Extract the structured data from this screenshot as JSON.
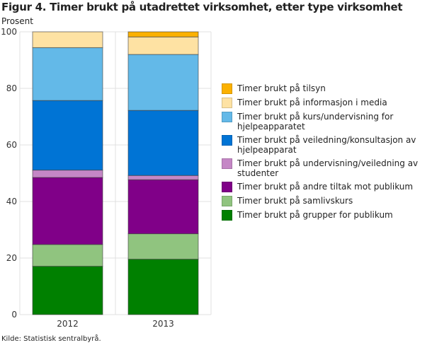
{
  "chart_data": {
    "type": "bar",
    "stacked": true,
    "title": "Figur 4. Timer brukt på utadrettet virksomhet, etter type virksomhet",
    "ylabel": "Prosent",
    "xlabel": "",
    "ylim": [
      0,
      100
    ],
    "yticks": [
      0,
      20,
      40,
      60,
      80,
      100
    ],
    "categories": [
      "2012",
      "2013"
    ],
    "grid": true,
    "legend_position": "right",
    "series": [
      {
        "name": "Timer brukt på grupper for publikum",
        "color": "#008000",
        "values": [
          17.1,
          19.6
        ]
      },
      {
        "name": "Timer brukt på samlivskurs",
        "color": "#90c47f",
        "values": [
          7.7,
          9.0
        ]
      },
      {
        "name": "Timer brukt på andre tiltak mot publikum",
        "color": "#800088",
        "values": [
          23.7,
          19.1
        ]
      },
      {
        "name": "Timer brukt på undervisning/veiledning av studenter",
        "color": "#c587c6",
        "values": [
          2.6,
          1.5
        ]
      },
      {
        "name": "Timer brukt på veiledning/konsultasjon av hjelpeapparat",
        "color": "#0074d5",
        "values": [
          24.6,
          23.0
        ]
      },
      {
        "name": "Timer brukt på kurs/undervisning for hjelpeapparatet",
        "color": "#63b9e8",
        "values": [
          18.7,
          19.8
        ]
      },
      {
        "name": "Timer brukt på informasjon i media",
        "color": "#fee2a3",
        "values": [
          5.6,
          6.2
        ]
      },
      {
        "name": "Timer brukt på tilsyn",
        "color": "#fbb100",
        "values": [
          0,
          1.8
        ]
      }
    ]
  },
  "source": "Kilde: Statistisk sentralbyrå."
}
